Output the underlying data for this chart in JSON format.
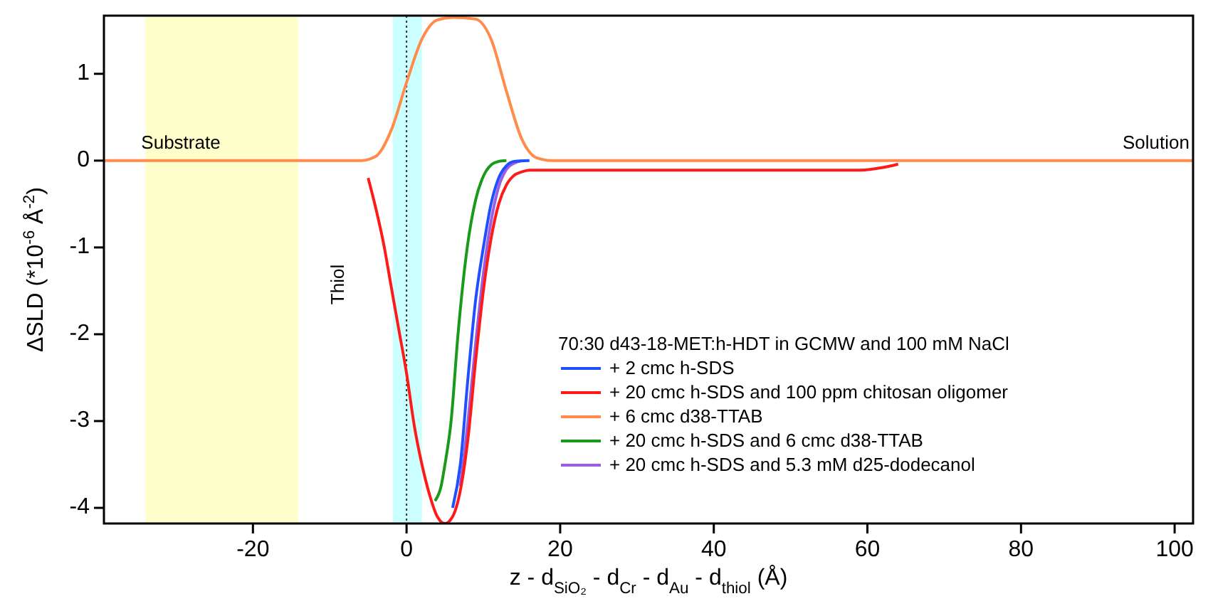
{
  "chart_data": {
    "type": "line",
    "xlabel": "z - d$_{SiO₂}$ - d$_{Cr}$ - d$_{Au}$ - d$_{thiol}$ (Å)",
    "ylabel": "ΔSLD (*10$^{-6}$ Å$^{-2}$)",
    "legend_title": "70:30 d43-18-MET:h-HDT in GCMW and 100 mM NaCl",
    "legend": "bottom right",
    "grid": false,
    "line_style": "solid",
    "marker": "none",
    "xlim": [
      -39.4,
      102.4
    ],
    "ylim": [
      -4.18,
      1.67
    ],
    "xticks": [
      -20,
      0,
      20,
      40,
      60,
      80,
      100
    ],
    "yticks": [
      -4,
      -3,
      -2,
      -1,
      0,
      1
    ],
    "bands": [
      {
        "axis": "x",
        "from": -34,
        "to": -14.1,
        "color": "#ffffcc"
      },
      {
        "axis": "x",
        "from": -1.8,
        "to": 2,
        "color": "#ccffff"
      }
    ],
    "ref_lines": [
      {
        "axis": "x",
        "value": 0,
        "color": "#333333",
        "line_style": "dotted"
      }
    ],
    "annotations": [
      "Substrate",
      "Thiol",
      "Solution"
    ],
    "series": [
      {
        "name": "+ 2 cmc h-SDS",
        "color": "#1f4fff",
        "x": [
          6,
          7,
          8,
          9,
          10,
          11,
          12,
          13,
          14,
          16
        ],
        "values": [
          -4.0,
          -3.5,
          -2.5,
          -1.6,
          -1.0,
          -0.5,
          -0.2,
          -0.06,
          -0.01,
          0
        ]
      },
      {
        "name": "+ 20 cmc h-SDS and 100 ppm chitosan oligomer",
        "color": "#ff1a1a",
        "x": [
          -5,
          -4,
          -3,
          -2,
          -1,
          0,
          1,
          2,
          3,
          4,
          5,
          6,
          7,
          8,
          9,
          10,
          11,
          12,
          13,
          14,
          15,
          16,
          59,
          62,
          64
        ],
        "values": [
          -0.2,
          -0.55,
          -0.95,
          -1.45,
          -1.95,
          -2.45,
          -3.05,
          -3.5,
          -3.85,
          -4.1,
          -4.18,
          -4.1,
          -3.8,
          -3.2,
          -2.3,
          -1.5,
          -0.9,
          -0.5,
          -0.28,
          -0.17,
          -0.13,
          -0.11,
          -0.11,
          -0.08,
          -0.04
        ]
      },
      {
        "name": "+ 6 cmc d38-TTAB",
        "color": "#ff8c4a",
        "x": [
          -39.4,
          -6,
          -4,
          -2,
          0,
          2,
          4,
          6,
          9,
          11,
          13,
          15,
          17,
          19,
          102.4
        ],
        "values": [
          0,
          0,
          0.05,
          0.35,
          0.9,
          1.4,
          1.62,
          1.65,
          1.63,
          1.4,
          0.8,
          0.25,
          0.03,
          0,
          0
        ]
      },
      {
        "name": "+ 20 cmc h-SDS and 6 cmc d38-TTAB",
        "color": "#1a9a1a",
        "x": [
          3.7,
          4.5,
          5,
          5.8,
          6.7,
          7.9,
          9,
          10,
          11,
          12,
          13
        ],
        "values": [
          -3.92,
          -3.75,
          -3.5,
          -3.0,
          -2.0,
          -1.0,
          -0.45,
          -0.18,
          -0.05,
          -0.01,
          0
        ]
      },
      {
        "name": "+ 20 cmc h-SDS and 5.3 mM d25-dodecanol",
        "color": "#9a5fe0",
        "x": [
          7,
          8,
          9,
          10,
          11,
          12,
          13,
          14,
          15
        ],
        "values": [
          -3.75,
          -3.0,
          -2.1,
          -1.3,
          -0.7,
          -0.3,
          -0.1,
          -0.03,
          0
        ]
      }
    ]
  }
}
